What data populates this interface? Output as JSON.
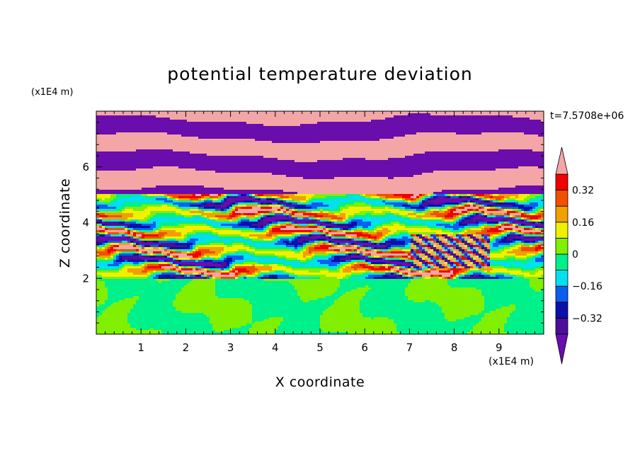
{
  "chart_data": {
    "type": "heatmap",
    "title": "potential temperature deviation",
    "xlabel": "X coordinate",
    "ylabel": "Z coordinate",
    "x_unit": "(x1E4 m)",
    "y_unit": "(x1E4 m)",
    "time_label": "t=7.5708e+06",
    "xlim": [
      0,
      10
    ],
    "ylim": [
      0,
      8
    ],
    "x_ticks": [
      1,
      2,
      3,
      4,
      5,
      6,
      7,
      8,
      9
    ],
    "y_ticks": [
      2,
      4,
      6
    ],
    "colorbar": {
      "levels": [
        -0.4,
        -0.32,
        -0.24,
        -0.16,
        -0.08,
        0,
        0.08,
        0.16,
        0.24,
        0.32,
        0.4
      ],
      "labels": [
        {
          "value": 0.32,
          "text": "0.32"
        },
        {
          "value": 0.16,
          "text": "0.16"
        },
        {
          "value": 0,
          "text": "0"
        },
        {
          "value": -0.16,
          "text": "−0.16"
        },
        {
          "value": -0.32,
          "text": "−0.32"
        }
      ],
      "colors": [
        "#6a0dad",
        "#4b0f9a",
        "#0a10a8",
        "#0a5ef0",
        "#00e0f0",
        "#00f08a",
        "#80f000",
        "#f0f000",
        "#f0a000",
        "#f05000",
        "#f00000",
        "#f4a6a6"
      ],
      "extend": "both"
    },
    "layers": [
      {
        "z_range": [
          0,
          2.0
        ],
        "dominant": [
          0.06,
          -0.01
        ],
        "pattern": "blobs"
      },
      {
        "z_range": [
          2.0,
          5.0
        ],
        "dominant": [
          0.44,
          -0.44,
          0.1,
          -0.2
        ],
        "pattern": "turbulent"
      },
      {
        "z_range": [
          5.0,
          8.0
        ],
        "dominant": [
          0.44,
          -0.44
        ],
        "pattern": "bands"
      }
    ]
  }
}
